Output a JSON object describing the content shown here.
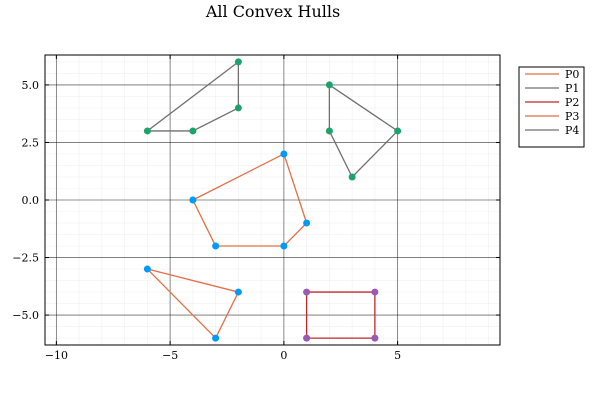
{
  "chart_data": {
    "type": "line",
    "title": "All Convex Hulls",
    "xlabel": "",
    "ylabel": "",
    "xlim": [
      -10.5,
      9.5
    ],
    "ylim": [
      -6.3,
      6.3
    ],
    "x_ticks": [
      -10,
      -5,
      0,
      5
    ],
    "x_tick_labels": [
      "−10",
      "−5",
      "0",
      "5"
    ],
    "y_ticks": [
      -5,
      -2.5,
      0,
      2.5,
      5
    ],
    "y_tick_labels": [
      "−5.0",
      "−2.5",
      "0.0",
      "2.5",
      "5.0"
    ],
    "x_minor_step": 1,
    "y_minor_step": 0.5,
    "grid": true,
    "legend_position": "top-right, outside plot",
    "series": [
      {
        "name": "P0",
        "color": "#e26f46",
        "closed": true,
        "points": [
          [
            -4,
            0
          ],
          [
            -3,
            -2
          ],
          [
            0,
            -2
          ],
          [
            1,
            -1
          ],
          [
            0,
            2
          ],
          [
            -4,
            0
          ]
        ]
      },
      {
        "name": "P1",
        "color": "#6f6f6f",
        "closed": true,
        "points": [
          [
            2,
            5
          ],
          [
            5,
            3
          ],
          [
            3,
            1
          ],
          [
            2,
            3
          ],
          [
            2,
            5
          ]
        ]
      },
      {
        "name": "P2",
        "color": "#c1272d",
        "closed": true,
        "points": [
          [
            1,
            -4
          ],
          [
            4,
            -4
          ],
          [
            4,
            -6
          ],
          [
            1,
            -6
          ],
          [
            1,
            -4
          ]
        ]
      },
      {
        "name": "P3",
        "color": "#e26f46",
        "closed": true,
        "points": [
          [
            -6,
            -3
          ],
          [
            -2,
            -4
          ],
          [
            -3,
            -6
          ],
          [
            -6,
            -3
          ]
        ]
      },
      {
        "name": "P4",
        "color": "#6f6f6f",
        "closed": true,
        "points": [
          [
            -2,
            6
          ],
          [
            -2,
            4
          ],
          [
            -4,
            3
          ],
          [
            -6,
            3
          ],
          [
            -2,
            6
          ]
        ]
      }
    ],
    "scatter_groups": [
      {
        "color": "#009af9",
        "points": [
          [
            -4,
            0
          ],
          [
            -3,
            -2
          ],
          [
            0,
            -2
          ],
          [
            1,
            -1
          ],
          [
            0,
            2
          ],
          [
            -6,
            -3
          ],
          [
            -2,
            -4
          ],
          [
            -3,
            -6
          ]
        ]
      },
      {
        "color": "#1aa36b",
        "points": [
          [
            -2,
            6
          ],
          [
            -2,
            4
          ],
          [
            -4,
            3
          ],
          [
            -6,
            3
          ],
          [
            2,
            5
          ],
          [
            5,
            3
          ],
          [
            3,
            1
          ],
          [
            2,
            3
          ]
        ]
      },
      {
        "color": "#9b59b6",
        "points": [
          [
            1,
            -4
          ],
          [
            4,
            -4
          ],
          [
            1,
            -6
          ],
          [
            4,
            -6
          ]
        ]
      }
    ]
  }
}
